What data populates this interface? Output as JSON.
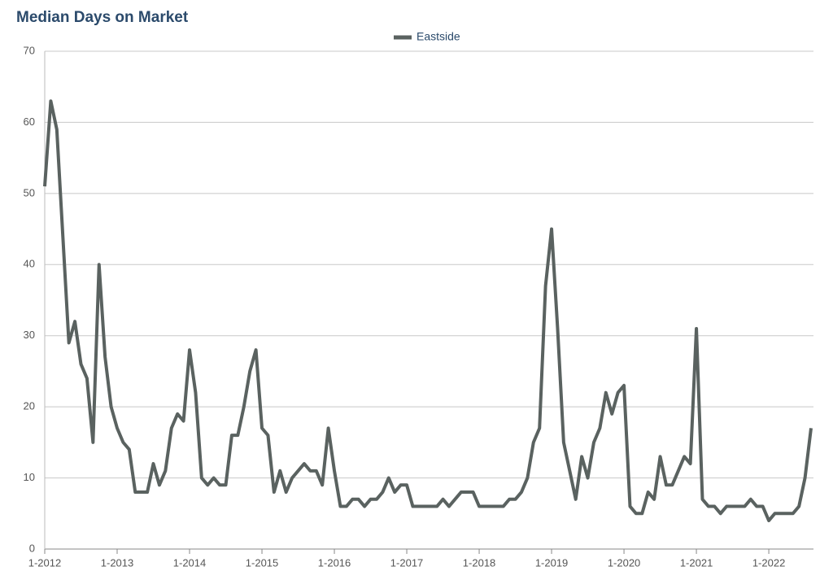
{
  "chart_data": {
    "type": "line",
    "title": "Median Days on Market",
    "categories": [
      "1-2012",
      null,
      null,
      null,
      null,
      null,
      null,
      null,
      null,
      null,
      null,
      null,
      "1-2013",
      null,
      null,
      null,
      null,
      null,
      null,
      null,
      null,
      null,
      null,
      null,
      "1-2014",
      null,
      null,
      null,
      null,
      null,
      null,
      null,
      null,
      null,
      null,
      null,
      "1-2015",
      null,
      null,
      null,
      null,
      null,
      null,
      null,
      null,
      null,
      null,
      null,
      "1-2016",
      null,
      null,
      null,
      null,
      null,
      null,
      null,
      null,
      null,
      null,
      null,
      "1-2017",
      null,
      null,
      null,
      null,
      null,
      null,
      null,
      null,
      null,
      null,
      null,
      "1-2018",
      null,
      null,
      null,
      null,
      null,
      null,
      null,
      null,
      null,
      null,
      null,
      "1-2019",
      null,
      null,
      null,
      null,
      null,
      null,
      null,
      null,
      null,
      null,
      null,
      "1-2020",
      null,
      null,
      null,
      null,
      null,
      null,
      null,
      null,
      null,
      null,
      null,
      "1-2021",
      null,
      null,
      null,
      null,
      null,
      null,
      null,
      null,
      null,
      null,
      null,
      "1-2022",
      null,
      null,
      null,
      null,
      null,
      null,
      null
    ],
    "series": [
      {
        "name": "Eastside",
        "color": "#5a6260",
        "values": [
          51,
          63,
          59,
          44,
          29,
          32,
          26,
          24,
          15,
          40,
          27,
          20,
          17,
          15,
          14,
          8,
          8,
          8,
          12,
          9,
          11,
          17,
          19,
          18,
          28,
          22,
          10,
          9,
          10,
          9,
          9,
          16,
          16,
          20,
          25,
          28,
          17,
          16,
          8,
          11,
          8,
          10,
          11,
          12,
          11,
          11,
          9,
          17,
          11,
          6,
          6,
          7,
          7,
          6,
          7,
          7,
          8,
          10,
          8,
          9,
          9,
          6,
          6,
          6,
          6,
          6,
          7,
          6,
          7,
          8,
          8,
          8,
          6,
          6,
          6,
          6,
          6,
          7,
          7,
          8,
          10,
          15,
          17,
          37,
          45,
          31,
          15,
          11,
          7,
          13,
          10,
          15,
          17,
          22,
          19,
          22,
          23,
          6,
          5,
          5,
          8,
          7,
          13,
          9,
          9,
          11,
          13,
          12,
          31,
          7,
          6,
          6,
          5,
          6,
          6,
          6,
          6,
          7,
          6,
          6,
          4,
          5,
          5,
          5,
          5,
          6,
          10,
          17
        ]
      }
    ],
    "ylim": [
      0,
      70
    ],
    "yticks": [
      0,
      10,
      20,
      30,
      40,
      50,
      60,
      70
    ],
    "grid": true,
    "legend": "top"
  }
}
